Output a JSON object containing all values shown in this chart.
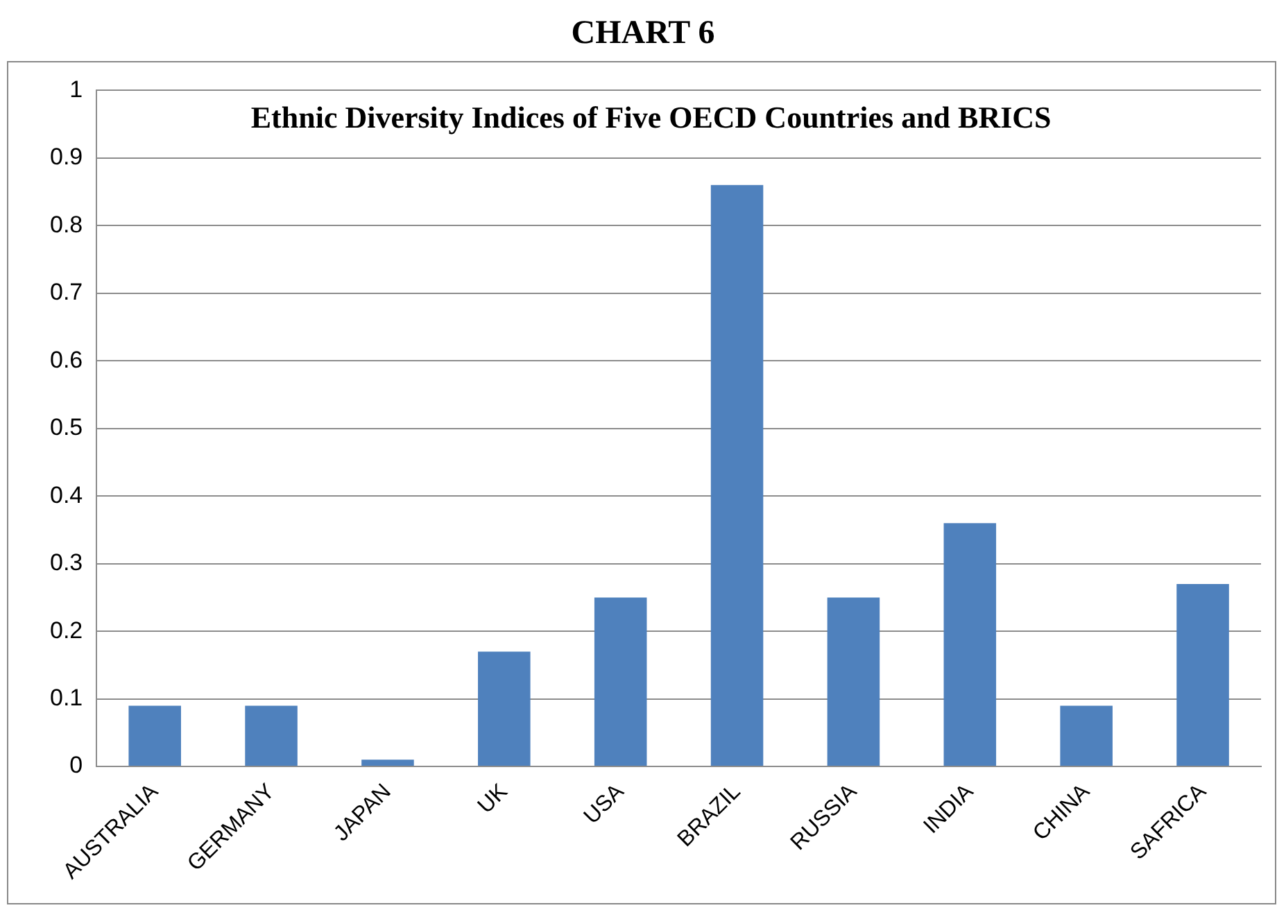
{
  "chart_data": {
    "type": "bar",
    "title": "CHART 6",
    "subtitle": "Ethnic Diversity Indices of Five OECD Countries and BRICS",
    "categories": [
      "AUSTRALIA",
      "GERMANY",
      "JAPAN",
      "UK",
      "USA",
      "BRAZIL",
      "RUSSIA",
      "INDIA",
      "CHINA",
      "SAFRICA"
    ],
    "values": [
      0.09,
      0.09,
      0.01,
      0.17,
      0.25,
      0.86,
      0.25,
      0.36,
      0.09,
      0.27
    ],
    "color": "#4f81bd",
    "ylim": [
      0,
      1
    ],
    "yticks": [
      0,
      0.1,
      0.2,
      0.3,
      0.4,
      0.5,
      0.6,
      0.7,
      0.8,
      0.9,
      1
    ],
    "grid": "y",
    "legend": false
  }
}
